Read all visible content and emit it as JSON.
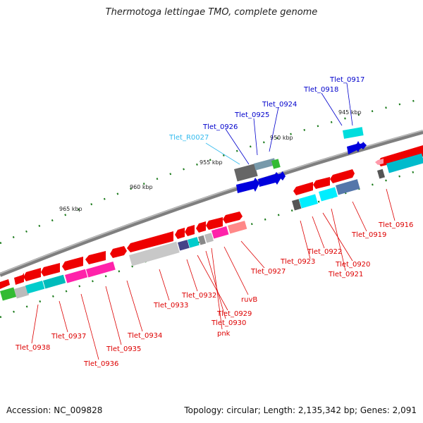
{
  "title": "Thermotoga lettingae TMO, complete genome",
  "footer": {
    "accession": "Accession: NC_009828",
    "topology": "Topology: circular; Length: 2,135,342 bp; Genes: 2,091"
  },
  "ticks": [
    "965 kbp",
    "960 kbp",
    "955 kbp",
    "950 kbp",
    "945 kbp"
  ],
  "colors": {
    "forward_genes": "#0000dd",
    "reverse_genes": "#ee0000",
    "rna": "#33bbee",
    "backbone": "#808080",
    "gc_marks": "#1a7a1a"
  },
  "labels_forward": [
    "Tlet_R0027",
    "Tlet_0926",
    "Tlet_0925",
    "Tlet_0924",
    "Tlet_0918",
    "Tlet_0917"
  ],
  "labels_reverse": [
    "Tlet_0938",
    "Tlet_0937",
    "Tlet_0936",
    "Tlet_0935",
    "Tlet_0934",
    "Tlet_0933",
    "Tlet_0932",
    "Tlet_0930",
    "Tlet_0929",
    "pnk",
    "ruvB",
    "Tlet_0927",
    "Tlet_0923",
    "Tlet_0922",
    "Tlet_0920",
    "Tlet_0921",
    "Tlet_0919",
    "Tlet_0916"
  ]
}
